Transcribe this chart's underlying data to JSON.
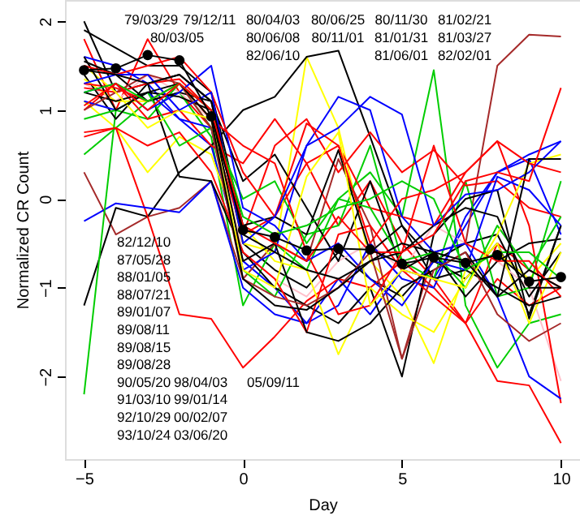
{
  "chart_data": {
    "type": "line",
    "xlabel": "Day",
    "ylabel": "Normalized CR Count",
    "x": [
      -5,
      -4,
      -3,
      -2,
      -1,
      0,
      1,
      2,
      3,
      4,
      5,
      6,
      7,
      8,
      9,
      10
    ],
    "xlim": [
      -5.6,
      10.6
    ],
    "xticks": [
      -5,
      0,
      5,
      10
    ],
    "ylim": [
      -2.93,
      2.24
    ],
    "yticks": [
      -2,
      -1,
      0,
      1,
      2
    ],
    "grid": false,
    "marker": "none",
    "line_style": "solid",
    "annotations": [
      "79/03/29",
      "79/12/11",
      "80/03/05",
      "80/04/03",
      "80/06/08",
      "82/06/10",
      "80/06/25",
      "80/11/01",
      "80/11/30",
      "81/01/31",
      "81/06/01",
      "81/02/21",
      "81/03/27",
      "82/02/01",
      "82/12/10",
      "87/05/28",
      "88/01/05",
      "88/07/21",
      "89/01/07",
      "89/08/11",
      "89/08/15",
      "89/08/28",
      "90/05/20",
      "98/04/03",
      "05/09/11",
      "91/03/10",
      "99/01/14",
      "92/10/29",
      "00/02/07",
      "93/10/24",
      "03/06/20"
    ],
    "series": [
      {
        "color": "#000000",
        "values": [
          2.0,
          1.2,
          1.3,
          1.4,
          1.1,
          -0.5,
          -0.8,
          -1.0,
          -0.6,
          -0.9,
          -1.1,
          -0.7,
          -0.9,
          -0.5,
          -1.3,
          -0.3
        ]
      },
      {
        "color": "#ff0000",
        "values": [
          1.8,
          1.0,
          1.8,
          1.2,
          0.8,
          -0.4,
          -0.2,
          0.4,
          -0.3,
          0.2,
          -0.5,
          -0.9,
          -1.4,
          -0.5,
          -0.8,
          -1.0
        ]
      },
      {
        "color": "#00cd00",
        "values": [
          0.5,
          0.8,
          1.1,
          1.2,
          0.7,
          -1.2,
          -0.5,
          -0.8,
          0.0,
          0.3,
          -0.2,
          1.45,
          -1.2,
          -1.9,
          -1.4,
          -1.3
        ]
      },
      {
        "color": "#0000ff",
        "values": [
          1.6,
          1.5,
          1.3,
          0.9,
          0.6,
          -0.7,
          -1.0,
          -1.4,
          -0.9,
          -1.3,
          -0.8,
          -0.9,
          -0.3,
          0.3,
          0.5,
          0.65
        ]
      },
      {
        "color": "#ffff00",
        "values": [
          1.1,
          0.8,
          0.3,
          0.7,
          0.5,
          -0.5,
          -0.6,
          1.6,
          0.8,
          -0.7,
          -1.1,
          -1.85,
          -0.8,
          -0.6,
          -0.9,
          -0.5
        ]
      },
      {
        "color": "#a52a2a",
        "values": [
          0.3,
          -0.4,
          -0.2,
          -0.1,
          0.2,
          -0.9,
          -0.5,
          -0.7,
          0.45,
          -0.3,
          -1.8,
          -0.6,
          -0.5,
          1.5,
          1.85,
          1.83
        ]
      },
      {
        "color": "#ffc0cb",
        "values": [
          1.3,
          1.1,
          1.4,
          1.2,
          0.9,
          -0.6,
          -0.9,
          -1.1,
          -0.7,
          -0.5,
          -0.8,
          -0.3,
          -0.5,
          -0.7,
          -1.0,
          -2.05
        ]
      },
      {
        "color": "#000000",
        "values": [
          -1.2,
          -0.1,
          -0.2,
          0.3,
          0.6,
          1.0,
          1.15,
          1.6,
          1.67,
          0.7,
          -0.3,
          -0.7,
          -0.5,
          -0.4,
          -1.1,
          -0.6
        ]
      },
      {
        "color": "#ff0000",
        "values": [
          0.75,
          0.8,
          -0.2,
          -1.3,
          -1.35,
          -1.9,
          -1.55,
          -1.15,
          -0.9,
          -1.0,
          -0.7,
          -1.0,
          -1.4,
          -0.9,
          -1.2,
          -1.0
        ]
      },
      {
        "color": "#0000ff",
        "values": [
          -0.25,
          -0.05,
          -0.1,
          -0.15,
          0.2,
          -1.0,
          -1.3,
          -1.4,
          -1.2,
          -0.5,
          -0.9,
          -1.0,
          -0.2,
          0.3,
          0.45,
          -0.4
        ]
      },
      {
        "color": "#00cd00",
        "values": [
          -2.2,
          1.0,
          0.9,
          1.3,
          0.8,
          -0.8,
          -1.1,
          -0.4,
          -0.3,
          0.6,
          -0.7,
          -0.9,
          0.2,
          -1.1,
          -1.0,
          0.2
        ]
      },
      {
        "color": "#000000",
        "values": [
          1.4,
          0.9,
          1.3,
          0.25,
          0.2,
          -0.6,
          -1.0,
          -1.2,
          -1.4,
          -1.0,
          -2.0,
          -0.4,
          0.0,
          0.1,
          -1.35,
          -0.3
        ]
      },
      {
        "color": "#ff0000",
        "values": [
          1.0,
          1.3,
          0.9,
          1.0,
          0.6,
          0.4,
          0.9,
          0.4,
          0.6,
          -0.1,
          -0.2,
          -0.3,
          0.3,
          0.65,
          -0.3,
          -2.3
        ]
      },
      {
        "color": "#ffff00",
        "values": [
          1.35,
          1.1,
          1.1,
          1.3,
          0.9,
          -0.3,
          -0.7,
          -0.8,
          -1.75,
          -1.0,
          -1.3,
          -1.5,
          -0.9,
          -0.5,
          -1.4,
          -0.6
        ]
      },
      {
        "color": "#0000ff",
        "values": [
          1.1,
          1.0,
          1.2,
          0.9,
          0.8,
          -0.8,
          -0.6,
          0.6,
          1.15,
          1.0,
          -0.2,
          -0.6,
          -0.5,
          -1.1,
          -2.0,
          -2.25
        ]
      },
      {
        "color": "#000000",
        "values": [
          1.55,
          1.4,
          1.1,
          1.2,
          1.1,
          0.2,
          0.5,
          -0.1,
          -0.7,
          0.2,
          -0.8,
          -0.6,
          -1.1,
          -0.7,
          -0.5,
          -0.45
        ]
      },
      {
        "color": "#ff0000",
        "values": [
          1.25,
          1.2,
          1.3,
          1.35,
          1.0,
          -0.4,
          0.6,
          0.9,
          0.3,
          0.75,
          0.3,
          0.55,
          0.15,
          0.2,
          -0.1,
          -0.2
        ]
      },
      {
        "color": "#ff0000",
        "values": [
          0.7,
          0.8,
          0.6,
          0.75,
          0.3,
          -0.6,
          -0.9,
          -1.5,
          -0.4,
          -0.3,
          -0.8,
          -1.1,
          -1.4,
          -2.05,
          -2.1,
          -2.75
        ]
      },
      {
        "color": "#000000",
        "values": [
          1.9,
          1.7,
          1.5,
          1.5,
          1.2,
          -0.3,
          -0.2,
          -0.4,
          0.55,
          -0.6,
          -0.3,
          -0.9,
          -0.8,
          -1.0,
          -1.2,
          -1.1
        ]
      },
      {
        "color": "#00cd00",
        "values": [
          0.9,
          1.0,
          1.2,
          0.6,
          0.8,
          0.0,
          0.2,
          -0.5,
          0.0,
          -0.1,
          -0.7,
          -0.6,
          -1.0,
          -0.3,
          -0.8,
          -0.2
        ]
      },
      {
        "color": "#0000ff",
        "values": [
          1.2,
          1.3,
          1.0,
          1.2,
          1.5,
          -0.1,
          -0.3,
          -0.7,
          -0.5,
          -0.9,
          -1.2,
          -0.7,
          -0.8,
          0.25,
          0.1,
          -0.3
        ]
      },
      {
        "color": "#000000",
        "values": [
          1.2,
          1.1,
          1.2,
          1.15,
          1.0,
          -0.7,
          -0.5,
          -1.5,
          -1.6,
          -1.4,
          -1.0,
          -0.8,
          -0.6,
          -1.1,
          -0.8,
          -1.0
        ]
      },
      {
        "color": "#ff0000",
        "values": [
          1.3,
          1.25,
          1.1,
          1.3,
          0.9,
          0.6,
          0.4,
          -0.6,
          -1.3,
          -1.2,
          -0.6,
          0.6,
          -0.5,
          -0.7,
          -0.7,
          -1.1
        ]
      },
      {
        "color": "#a52a2a",
        "values": [
          1.0,
          1.2,
          1.4,
          1.3,
          0.8,
          -0.9,
          -1.1,
          -1.2,
          -1.0,
          -0.6,
          -1.8,
          -0.8,
          -0.6,
          -1.3,
          -1.6,
          -1.4
        ]
      },
      {
        "color": "#ffff00",
        "values": [
          1.5,
          1.2,
          0.8,
          1.0,
          0.9,
          -0.8,
          -1.0,
          0.25,
          0.75,
          -1.2,
          -0.8,
          -0.9,
          -1.0,
          -0.4,
          0.4,
          0.5
        ]
      },
      {
        "color": "#000000",
        "values": [
          1.6,
          1.0,
          1.2,
          1.3,
          0.9,
          -0.9,
          -1.2,
          -1.25,
          -1.0,
          -0.7,
          -0.6,
          -0.3,
          -0.1,
          -0.2,
          -1.0,
          -1.0
        ]
      },
      {
        "color": "#ff0000",
        "values": [
          1.5,
          1.4,
          1.5,
          1.6,
          1.2,
          0.3,
          -0.2,
          0.85,
          0.6,
          -0.5,
          0.0,
          0.1,
          0.3,
          0.65,
          0.4,
          0.3
        ]
      },
      {
        "color": "#0000ff",
        "values": [
          1.3,
          1.4,
          1.4,
          1.0,
          1.2,
          -0.5,
          -0.2,
          0.6,
          0.8,
          1.15,
          0.95,
          -0.3,
          0.05,
          0.1,
          0.3,
          0.65
        ]
      },
      {
        "color": "#00cd00",
        "values": [
          1.2,
          1.3,
          1.1,
          1.3,
          1.0,
          -0.2,
          -0.4,
          -0.3,
          -0.1,
          0.0,
          0.2,
          0.0,
          -0.8,
          -0.6,
          -0.6,
          -0.9
        ]
      },
      {
        "color": "#000000",
        "values": [
          1.45,
          1.4,
          1.3,
          1.4,
          1.1,
          -0.4,
          -0.6,
          -0.8,
          -0.9,
          -0.7,
          -0.5,
          -0.6,
          -0.7,
          -1.1,
          0.45,
          0.45
        ]
      },
      {
        "color": "#ff0000",
        "values": [
          1.05,
          1.3,
          1.0,
          1.3,
          1.0,
          -0.3,
          -0.5,
          -0.7,
          -0.2,
          -0.6,
          -0.6,
          -0.4,
          0.2,
          0.3,
          0.2,
          1.25
        ]
      },
      {
        "color": "#000000",
        "marker": "circle",
        "values": [
          1.45,
          1.47,
          1.62,
          1.56,
          0.93,
          -0.35,
          -0.43,
          -0.58,
          -0.56,
          -0.57,
          -0.73,
          -0.66,
          -0.72,
          -0.63,
          -0.93,
          -0.88
        ]
      }
    ]
  }
}
